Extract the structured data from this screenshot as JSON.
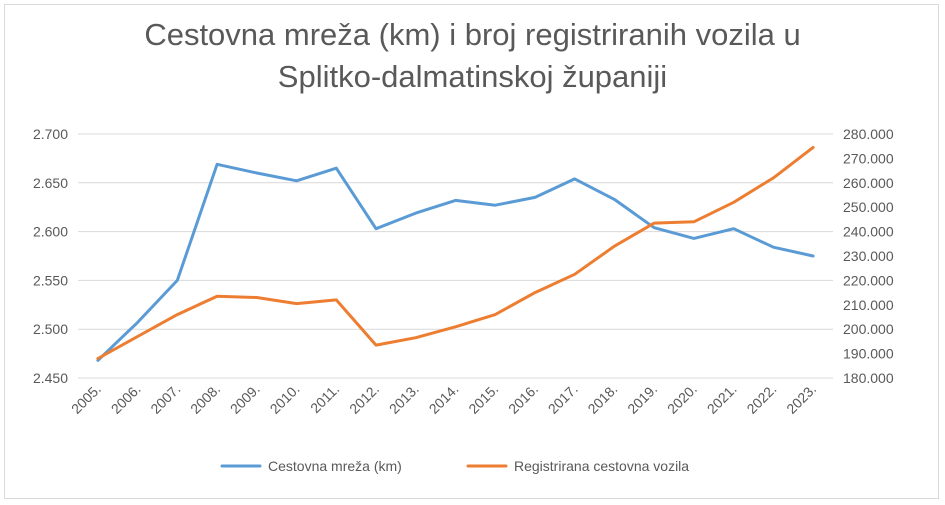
{
  "chart_data": {
    "type": "line",
    "title_line1": "Cestovna mreža (km) i broj registriranih vozila u",
    "title_line2": "Splitko-dalmatinskoj županiji",
    "categories": [
      "2005.",
      "2006.",
      "2007.",
      "2008.",
      "2009.",
      "2010.",
      "2011.",
      "2012.",
      "2013.",
      "2014.",
      "2015.",
      "2016.",
      "2017.",
      "2018.",
      "2019.",
      "2020.",
      "2021.",
      "2022.",
      "2023."
    ],
    "y_left": {
      "ylim": [
        2450,
        2700
      ],
      "ticks": [
        2450,
        2500,
        2550,
        2600,
        2650,
        2700
      ],
      "tick_labels": [
        "2.450",
        "2.500",
        "2.550",
        "2.600",
        "2.650",
        "2.700"
      ]
    },
    "y_right": {
      "ylim": [
        180000,
        280000
      ],
      "ticks": [
        180000,
        190000,
        200000,
        210000,
        220000,
        230000,
        240000,
        250000,
        260000,
        270000,
        280000
      ],
      "tick_labels": [
        "180.000",
        "190.000",
        "200.000",
        "210.000",
        "220.000",
        "230.000",
        "240.000",
        "250.000",
        "260.000",
        "270.000",
        "280.000"
      ]
    },
    "series": [
      {
        "name": "Cestovna mreža (km)",
        "axis": "left",
        "color": "#5b9bd5",
        "values": [
          2468,
          2507,
          2550,
          2669,
          2660,
          2652,
          2665,
          2603,
          2619,
          2632,
          2627,
          2635,
          2654,
          2633,
          2604,
          2593,
          2603,
          2584,
          2575
        ]
      },
      {
        "name": "Registrirana cestovna vozila",
        "axis": "right",
        "color": "#ed7d31",
        "values": [
          188000,
          197000,
          206000,
          213500,
          213000,
          210500,
          212000,
          193500,
          196500,
          201000,
          206000,
          215000,
          222500,
          234000,
          243500,
          244000,
          252000,
          262000,
          274500
        ]
      }
    ],
    "grid": true,
    "legend_position": "bottom"
  }
}
